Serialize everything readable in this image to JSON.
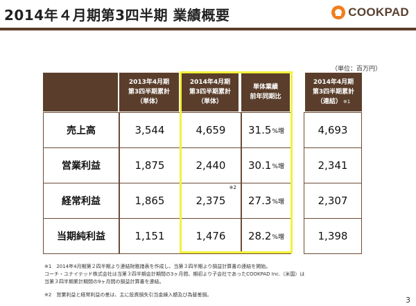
{
  "title": "2014年４月期第3四半期 業績概要",
  "logo": {
    "text": "COOKPAD",
    "icon": "chef-hat-icon"
  },
  "unit_note": "（単位：百万円）",
  "headers": {
    "col1": [
      "2013年4月期",
      "第3四半期累計",
      "（単体）"
    ],
    "col2": [
      "2014年4月期",
      "第3四半期累計",
      "（単体）"
    ],
    "col3": [
      "単体業績",
      "前年同期比"
    ],
    "col4": [
      "2014年4月期",
      "第3四半期累計",
      "（連結）"
    ],
    "col4_note": "※1"
  },
  "rows": [
    {
      "label": "売上高",
      "prev": "3,544",
      "curr": "4,659",
      "pct": "31.5",
      "pct_unit": "%増",
      "consol": "4,693",
      "note": ""
    },
    {
      "label": "営業利益",
      "prev": "1,875",
      "curr": "2,440",
      "pct": "30.1",
      "pct_unit": "%増",
      "consol": "2,341",
      "note": ""
    },
    {
      "label": "経常利益",
      "prev": "1,865",
      "curr": "2,375",
      "pct": "27.3",
      "pct_unit": "%増",
      "consol": "2,307",
      "note": "※2"
    },
    {
      "label": "当期純利益",
      "prev": "1,151",
      "curr": "1,476",
      "pct": "28.2",
      "pct_unit": "%増",
      "consol": "1,398",
      "note": ""
    }
  ],
  "footnotes": [
    "※1　2014年4月期第２四半期より連結財務諸表を作成し、当第３四半期より損益計算書の連結を開始。",
    "コーチ・ユナイテッド株式会社は当第３四半期会計期間の3ヶ月間、期初より子会社であったCOOKPAD Inc.（米国）は",
    "当第３四半期累計期間の9ヶ月間の損益計算書を連結。",
    "※2　営業利益と経常利益の差は、主に投資損失引当金繰入額及び為替差損。"
  ],
  "page_number": "3",
  "colors": {
    "header_bg": "#5a3e2b",
    "highlight": "#f4f23a",
    "brand": "#f07e1e"
  }
}
